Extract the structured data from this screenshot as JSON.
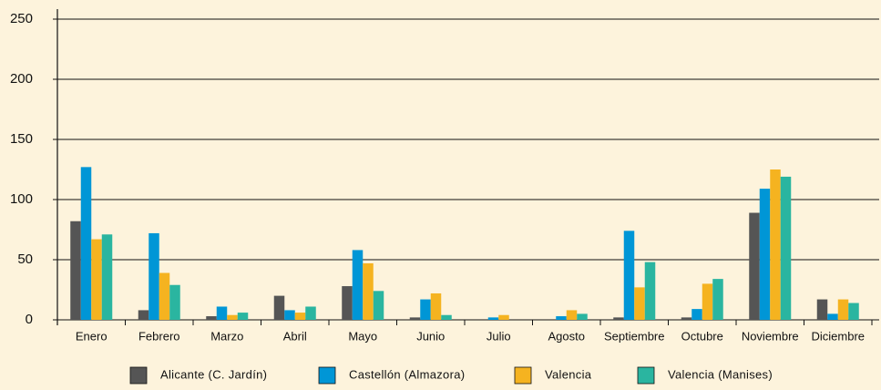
{
  "chart_data": {
    "type": "bar",
    "categories": [
      "Enero",
      "Febrero",
      "Marzo",
      "Abril",
      "Mayo",
      "Junio",
      "Julio",
      "Agosto",
      "Septiembre",
      "Octubre",
      "Noviembre",
      "Diciembre"
    ],
    "series": [
      {
        "name": "Alicante (C. Jardín)",
        "color": "#555555",
        "values": [
          82,
          8,
          3,
          20,
          28,
          2,
          0,
          0,
          2,
          2,
          89,
          17
        ]
      },
      {
        "name": "Castellón (Almazora)",
        "color": "#0096d6",
        "values": [
          127,
          72,
          11,
          8,
          58,
          17,
          2,
          3,
          74,
          9,
          109,
          5
        ]
      },
      {
        "name": "Valencia",
        "color": "#f5b320",
        "values": [
          67,
          39,
          4,
          6,
          47,
          22,
          4,
          8,
          27,
          30,
          125,
          17
        ]
      },
      {
        "name": "Valencia (Manises)",
        "color": "#2ab5a0",
        "values": [
          71,
          29,
          6,
          11,
          24,
          4,
          0,
          5,
          48,
          34,
          119,
          14
        ]
      }
    ],
    "ylim": [
      0,
      250
    ],
    "yticks": [
      0,
      50,
      100,
      150,
      200,
      250
    ],
    "grid": true
  }
}
